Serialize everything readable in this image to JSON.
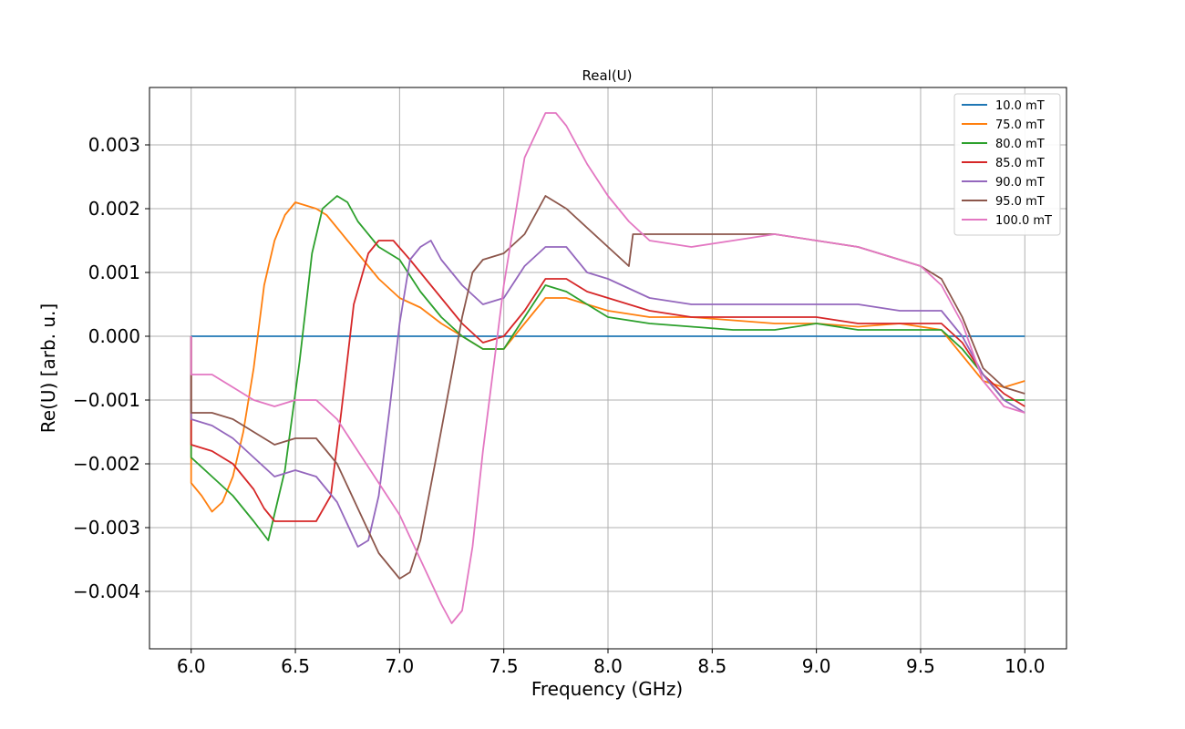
{
  "chart_data": {
    "type": "line",
    "title": "Real(U)",
    "xlabel": "Frequency (GHz)",
    "ylabel": "Re(U) [arb. u.]",
    "xlim": [
      5.8,
      10.2
    ],
    "ylim": [
      -0.0049,
      0.0039
    ],
    "xticks": [
      6.0,
      6.5,
      7.0,
      7.5,
      8.0,
      8.5,
      9.0,
      9.5,
      10.0
    ],
    "xtick_labels": [
      "6.0",
      "6.5",
      "7.0",
      "7.5",
      "8.0",
      "8.5",
      "9.0",
      "9.5",
      "10.0"
    ],
    "yticks": [
      -0.004,
      -0.003,
      -0.002,
      -0.001,
      0.0,
      0.001,
      0.002,
      0.003
    ],
    "ytick_labels": [
      "−0.004",
      "−0.003",
      "−0.002",
      "−0.001",
      "0.000",
      "0.001",
      "0.002",
      "0.003"
    ],
    "grid": true,
    "legend_position": "top-right",
    "series": [
      {
        "name": "10.0 mT",
        "color": "#1f77b4",
        "x": [
          6.0,
          10.0
        ],
        "y": [
          0.0,
          0.0
        ]
      },
      {
        "name": "75.0 mT",
        "color": "#ff7f0e",
        "x": [
          6.0,
          6.0,
          6.05,
          6.1,
          6.15,
          6.2,
          6.25,
          6.3,
          6.35,
          6.4,
          6.45,
          6.5,
          6.55,
          6.6,
          6.65,
          6.7,
          6.75,
          6.8,
          6.9,
          7.0,
          7.1,
          7.2,
          7.3,
          7.4,
          7.5,
          7.6,
          7.7,
          7.8,
          7.9,
          8.0,
          8.2,
          8.4,
          8.6,
          8.8,
          9.0,
          9.2,
          9.4,
          9.6,
          9.7,
          9.8,
          9.9,
          10.0
        ],
        "y": [
          0.0,
          -0.0023,
          -0.0025,
          -0.00275,
          -0.0026,
          -0.0022,
          -0.0015,
          -0.0005,
          0.0008,
          0.0015,
          0.0019,
          0.0021,
          0.00205,
          0.002,
          0.0019,
          0.0017,
          0.0015,
          0.0013,
          0.0009,
          0.0006,
          0.00045,
          0.0002,
          0.0,
          -0.0002,
          -0.0002,
          0.0002,
          0.0006,
          0.0006,
          0.0005,
          0.0004,
          0.0003,
          0.0003,
          0.00025,
          0.0002,
          0.0002,
          0.00015,
          0.0002,
          0.0001,
          -0.0003,
          -0.0007,
          -0.0008,
          -0.0007
        ]
      },
      {
        "name": "80.0 mT",
        "color": "#2ca02c",
        "x": [
          6.0,
          6.0,
          6.1,
          6.2,
          6.3,
          6.37,
          6.45,
          6.52,
          6.58,
          6.63,
          6.7,
          6.75,
          6.8,
          6.9,
          7.0,
          7.1,
          7.2,
          7.3,
          7.4,
          7.5,
          7.6,
          7.7,
          7.8,
          7.9,
          8.0,
          8.2,
          8.4,
          8.6,
          8.8,
          9.0,
          9.2,
          9.4,
          9.6,
          9.7,
          9.8,
          9.9,
          10.0
        ],
        "y": [
          0.0,
          -0.0019,
          -0.0022,
          -0.0025,
          -0.0029,
          -0.0032,
          -0.0021,
          -0.0004,
          0.0013,
          0.002,
          0.0022,
          0.0021,
          0.0018,
          0.0014,
          0.0012,
          0.0007,
          0.0003,
          0.0,
          -0.0002,
          -0.0002,
          0.0003,
          0.0008,
          0.0007,
          0.0005,
          0.0003,
          0.0002,
          0.00015,
          0.0001,
          0.0001,
          0.0002,
          0.0001,
          0.0001,
          0.0001,
          -0.0002,
          -0.0006,
          -0.001,
          -0.001
        ]
      },
      {
        "name": "85.0 mT",
        "color": "#d62728",
        "x": [
          6.0,
          6.0,
          6.1,
          6.2,
          6.3,
          6.35,
          6.4,
          6.5,
          6.6,
          6.67,
          6.72,
          6.78,
          6.85,
          6.9,
          6.97,
          7.05,
          7.1,
          7.2,
          7.3,
          7.4,
          7.5,
          7.6,
          7.7,
          7.8,
          7.9,
          8.0,
          8.2,
          8.4,
          8.6,
          8.8,
          9.0,
          9.2,
          9.4,
          9.6,
          9.7,
          9.8,
          9.9,
          10.0
        ],
        "y": [
          0.0,
          -0.0017,
          -0.0018,
          -0.002,
          -0.0024,
          -0.0027,
          -0.0029,
          -0.0029,
          -0.0029,
          -0.0025,
          -0.0012,
          0.0005,
          0.0013,
          0.0015,
          0.0015,
          0.0012,
          0.001,
          0.0006,
          0.0002,
          -0.0001,
          0.0,
          0.0004,
          0.0009,
          0.0009,
          0.0007,
          0.0006,
          0.0004,
          0.0003,
          0.0003,
          0.0003,
          0.0003,
          0.0002,
          0.0002,
          0.0002,
          -0.0001,
          -0.0006,
          -0.0009,
          -0.0011
        ]
      },
      {
        "name": "90.0 mT",
        "color": "#9467bd",
        "x": [
          6.0,
          6.0,
          6.1,
          6.2,
          6.3,
          6.4,
          6.5,
          6.6,
          6.7,
          6.8,
          6.85,
          6.9,
          6.95,
          7.0,
          7.05,
          7.1,
          7.15,
          7.2,
          7.3,
          7.4,
          7.5,
          7.6,
          7.7,
          7.8,
          7.9,
          8.0,
          8.2,
          8.4,
          8.6,
          8.8,
          9.0,
          9.2,
          9.4,
          9.6,
          9.7,
          9.8,
          9.9,
          10.0
        ],
        "y": [
          0.0,
          -0.0013,
          -0.0014,
          -0.0016,
          -0.0019,
          -0.0022,
          -0.0021,
          -0.0022,
          -0.0026,
          -0.0033,
          -0.0032,
          -0.0025,
          -0.0012,
          0.0002,
          0.0012,
          0.0014,
          0.0015,
          0.0012,
          0.0008,
          0.0005,
          0.0006,
          0.0011,
          0.0014,
          0.0014,
          0.001,
          0.0009,
          0.0006,
          0.0005,
          0.0005,
          0.0005,
          0.0005,
          0.0005,
          0.0004,
          0.0004,
          0.0,
          -0.0006,
          -0.001,
          -0.0012
        ]
      },
      {
        "name": "95.0 mT",
        "color": "#8c564b",
        "x": [
          6.0,
          6.0,
          6.1,
          6.2,
          6.3,
          6.4,
          6.5,
          6.6,
          6.7,
          6.8,
          6.9,
          7.0,
          7.05,
          7.1,
          7.17,
          7.25,
          7.3,
          7.35,
          7.4,
          7.5,
          7.6,
          7.7,
          7.8,
          7.9,
          8.0,
          8.1,
          8.12,
          8.2,
          8.4,
          8.6,
          8.8,
          9.0,
          9.2,
          9.4,
          9.5,
          9.6,
          9.7,
          9.8,
          9.9,
          10.0
        ],
        "y": [
          0.0,
          -0.0012,
          -0.0012,
          -0.0013,
          -0.0015,
          -0.0017,
          -0.0016,
          -0.0016,
          -0.002,
          -0.0027,
          -0.0034,
          -0.0038,
          -0.0037,
          -0.0032,
          -0.002,
          -0.0006,
          0.0003,
          0.001,
          0.0012,
          0.0013,
          0.0016,
          0.0022,
          0.002,
          0.0017,
          0.0014,
          0.0011,
          0.0016,
          0.0016,
          0.0016,
          0.0016,
          0.0016,
          0.0015,
          0.0014,
          0.0012,
          0.0011,
          0.0009,
          0.0003,
          -0.0005,
          -0.0008,
          -0.0009
        ]
      },
      {
        "name": "100.0 mT",
        "color": "#e377c2",
        "x": [
          6.0,
          6.0,
          6.1,
          6.2,
          6.3,
          6.4,
          6.5,
          6.6,
          6.7,
          6.8,
          6.9,
          7.0,
          7.1,
          7.2,
          7.25,
          7.3,
          7.35,
          7.4,
          7.45,
          7.5,
          7.55,
          7.6,
          7.7,
          7.75,
          7.8,
          7.9,
          8.0,
          8.1,
          8.2,
          8.4,
          8.6,
          8.8,
          9.0,
          9.2,
          9.4,
          9.5,
          9.6,
          9.7,
          9.8,
          9.9,
          10.0
        ],
        "y": [
          0.0,
          -0.0006,
          -0.0006,
          -0.0008,
          -0.001,
          -0.0011,
          -0.001,
          -0.001,
          -0.0013,
          -0.0018,
          -0.0023,
          -0.0028,
          -0.0035,
          -0.0042,
          -0.0045,
          -0.0043,
          -0.0033,
          -0.0018,
          -0.0005,
          0.0008,
          0.0018,
          0.0028,
          0.0035,
          0.0035,
          0.0033,
          0.0027,
          0.0022,
          0.0018,
          0.0015,
          0.0014,
          0.0015,
          0.0016,
          0.0015,
          0.0014,
          0.0012,
          0.0011,
          0.0008,
          0.0002,
          -0.0007,
          -0.0011,
          -0.0012
        ]
      }
    ]
  }
}
